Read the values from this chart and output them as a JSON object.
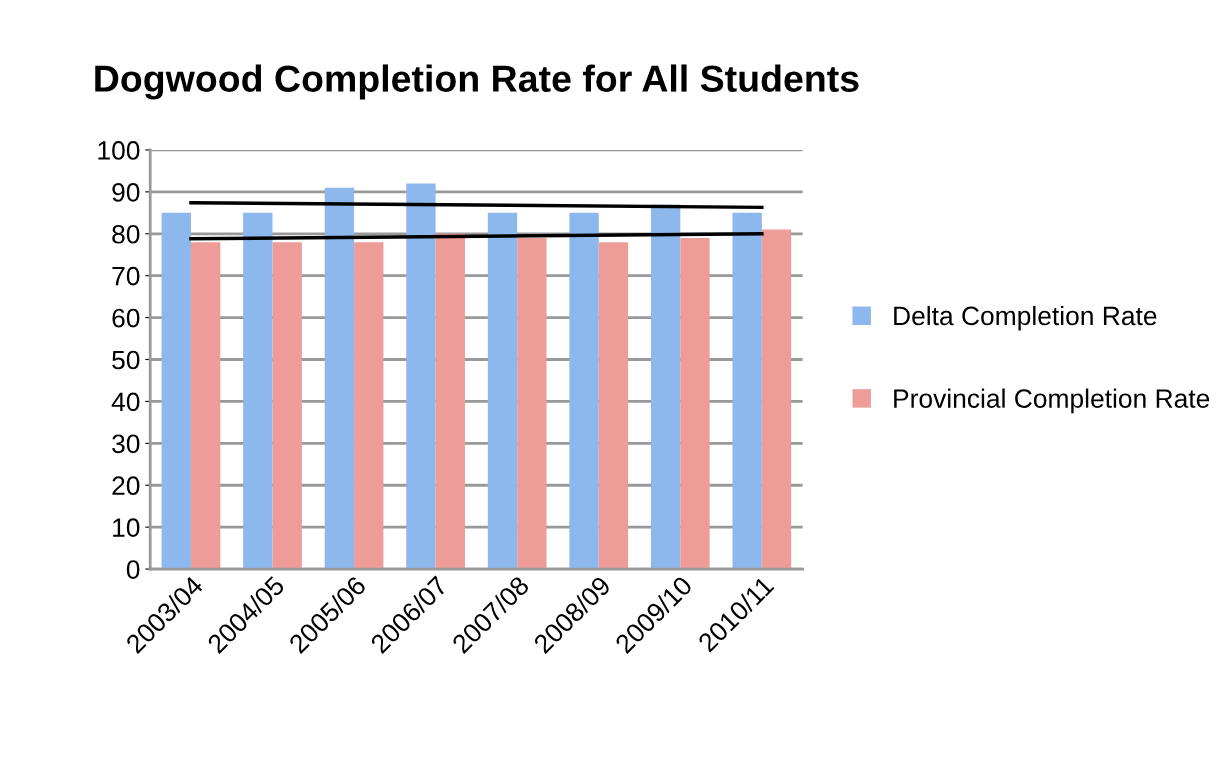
{
  "chart_data": {
    "type": "bar",
    "title": "Dogwood Completion Rate for All Students",
    "categories": [
      "2003/04",
      "2004/05",
      "2005/06",
      "2006/07",
      "2007/08",
      "2008/09",
      "2009/10",
      "2010/11"
    ],
    "series": [
      {
        "name": "Delta Completion Rate",
        "color": "#8db8ee",
        "values": [
          85,
          85,
          91,
          92,
          85,
          85,
          87,
          85
        ]
      },
      {
        "name": "Provincial Completion Rate",
        "color": "#ee9c98",
        "values": [
          78,
          78,
          78,
          80,
          79,
          78,
          79,
          81
        ]
      },
      {
        "type": "line",
        "color": "#000000",
        "x": [
          "2003/04",
          "2010/11"
        ],
        "values": [
          87.4,
          86.3
        ]
      },
      {
        "type": "line",
        "color": "#000000",
        "x": [
          "2003/04",
          "2010/11"
        ],
        "values": [
          78.8,
          80.0
        ]
      }
    ],
    "ylim": [
      0,
      100
    ],
    "yticks": [
      0,
      10,
      20,
      30,
      40,
      50,
      60,
      70,
      80,
      90,
      100
    ],
    "grid": "y",
    "legend": "right"
  }
}
